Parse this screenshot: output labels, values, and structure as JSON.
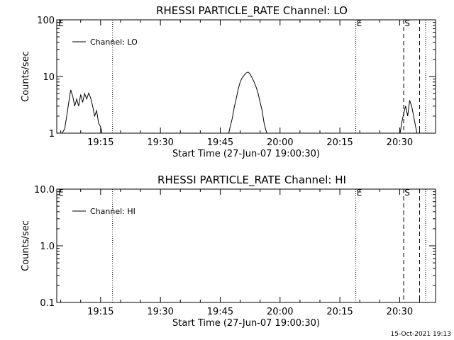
{
  "footer_timestamp": "15-Oct-2021 19:13",
  "chart_data": [
    {
      "type": "line",
      "title": "RHESSI PARTICLE_RATE Channel: LO",
      "xlabel": "Start Time (27-Jun-07 19:00:30)",
      "ylabel": "Counts/sec",
      "yscale": "log",
      "ylim": [
        1,
        100
      ],
      "yticks": [
        {
          "value": 1,
          "label": "1"
        },
        {
          "value": 10,
          "label": "10"
        },
        {
          "value": 100,
          "label": "100"
        }
      ],
      "xlim": [
        "19:04:00",
        "20:39:00"
      ],
      "xticks": [
        {
          "value": "19:15",
          "label": "19:15"
        },
        {
          "value": "19:30",
          "label": "19:30"
        },
        {
          "value": "19:45",
          "label": "19:45"
        },
        {
          "value": "20:00",
          "label": "20:00"
        },
        {
          "value": "20:15",
          "label": "20:15"
        },
        {
          "value": "20:30",
          "label": "20:30"
        }
      ],
      "legend": {
        "position": "top-left",
        "entries": [
          "Channel: LO"
        ]
      },
      "markers": [
        {
          "time": "19:04:00",
          "style": "label",
          "label": "E"
        },
        {
          "time": "19:18:00",
          "style": "dotted"
        },
        {
          "time": "20:19:00",
          "style": "dotted",
          "label": "E"
        },
        {
          "time": "20:31:00",
          "style": "dashed",
          "label": "S"
        },
        {
          "time": "20:35:00",
          "style": "dashed"
        },
        {
          "time": "20:36:30",
          "style": "dotted"
        }
      ],
      "series": [
        {
          "name": "Channel: LO",
          "segments": [
            [
              [
                "19:05:00",
                0.9
              ],
              [
                "19:06:00",
                1.2
              ],
              [
                "19:06:30",
                2.0
              ],
              [
                "19:07:00",
                3.5
              ],
              [
                "19:07:30",
                5.8
              ],
              [
                "19:08:00",
                4.5
              ],
              [
                "19:08:30",
                3.0
              ],
              [
                "19:09:00",
                4.0
              ],
              [
                "19:09:30",
                3.0
              ],
              [
                "19:10:00",
                4.8
              ],
              [
                "19:10:30",
                3.5
              ],
              [
                "19:11:00",
                5.0
              ],
              [
                "19:11:30",
                4.0
              ],
              [
                "19:12:00",
                5.1
              ],
              [
                "19:12:30",
                4.2
              ],
              [
                "19:13:00",
                3.0
              ],
              [
                "19:13:30",
                2.0
              ],
              [
                "19:14:00",
                2.5
              ],
              [
                "19:14:30",
                1.5
              ],
              [
                "19:15:00",
                1.3
              ],
              [
                "19:15:30",
                0.9
              ]
            ],
            [
              [
                "19:47:00",
                0.9
              ],
              [
                "19:47:30",
                1.3
              ],
              [
                "19:48:00",
                1.8
              ],
              [
                "19:48:30",
                2.8
              ],
              [
                "19:49:00",
                4.0
              ],
              [
                "19:49:30",
                6.0
              ],
              [
                "19:50:00",
                8.0
              ],
              [
                "19:50:30",
                9.5
              ],
              [
                "19:51:00",
                10.5
              ],
              [
                "19:51:30",
                11.5
              ],
              [
                "19:52:00",
                12.0
              ],
              [
                "19:52:30",
                11.0
              ],
              [
                "19:53:00",
                9.5
              ],
              [
                "19:53:30",
                8.0
              ],
              [
                "19:54:00",
                6.5
              ],
              [
                "19:54:30",
                5.0
              ],
              [
                "19:55:00",
                3.5
              ],
              [
                "19:55:30",
                2.5
              ],
              [
                "19:56:00",
                1.5
              ],
              [
                "19:56:30",
                1.1
              ],
              [
                "19:57:00",
                0.9
              ]
            ],
            [
              [
                "20:30:00",
                0.9
              ],
              [
                "20:30:30",
                1.5
              ],
              [
                "20:31:00",
                2.2
              ],
              [
                "20:31:30",
                3.0
              ],
              [
                "20:32:00",
                2.0
              ],
              [
                "20:32:30",
                3.8
              ],
              [
                "20:33:00",
                3.0
              ],
              [
                "20:33:30",
                2.0
              ],
              [
                "20:34:00",
                1.3
              ],
              [
                "20:34:30",
                0.9
              ]
            ]
          ]
        }
      ]
    },
    {
      "type": "line",
      "title": "RHESSI PARTICLE_RATE Channel: HI",
      "xlabel": "Start Time (27-Jun-07 19:00:30)",
      "ylabel": "Counts/sec",
      "yscale": "log",
      "ylim": [
        0.1,
        10
      ],
      "yticks": [
        {
          "value": 0.1,
          "label": "0.1"
        },
        {
          "value": 1,
          "label": "1.0"
        },
        {
          "value": 10,
          "label": "10.0"
        }
      ],
      "xlim": [
        "19:04:00",
        "20:39:00"
      ],
      "xticks": [
        {
          "value": "19:15",
          "label": "19:15"
        },
        {
          "value": "19:30",
          "label": "19:30"
        },
        {
          "value": "19:45",
          "label": "19:45"
        },
        {
          "value": "20:00",
          "label": "20:00"
        },
        {
          "value": "20:15",
          "label": "20:15"
        },
        {
          "value": "20:30",
          "label": "20:30"
        }
      ],
      "legend": {
        "position": "top-left",
        "entries": [
          "Channel: HI"
        ]
      },
      "markers": [
        {
          "time": "19:04:00",
          "style": "label",
          "label": "E"
        },
        {
          "time": "19:18:00",
          "style": "dotted"
        },
        {
          "time": "20:19:00",
          "style": "dotted",
          "label": "E"
        },
        {
          "time": "20:31:00",
          "style": "dashed",
          "label": "S"
        },
        {
          "time": "20:35:00",
          "style": "dashed"
        },
        {
          "time": "20:36:30",
          "style": "dotted"
        }
      ],
      "series": [
        {
          "name": "Channel: HI",
          "segments": []
        }
      ]
    }
  ]
}
